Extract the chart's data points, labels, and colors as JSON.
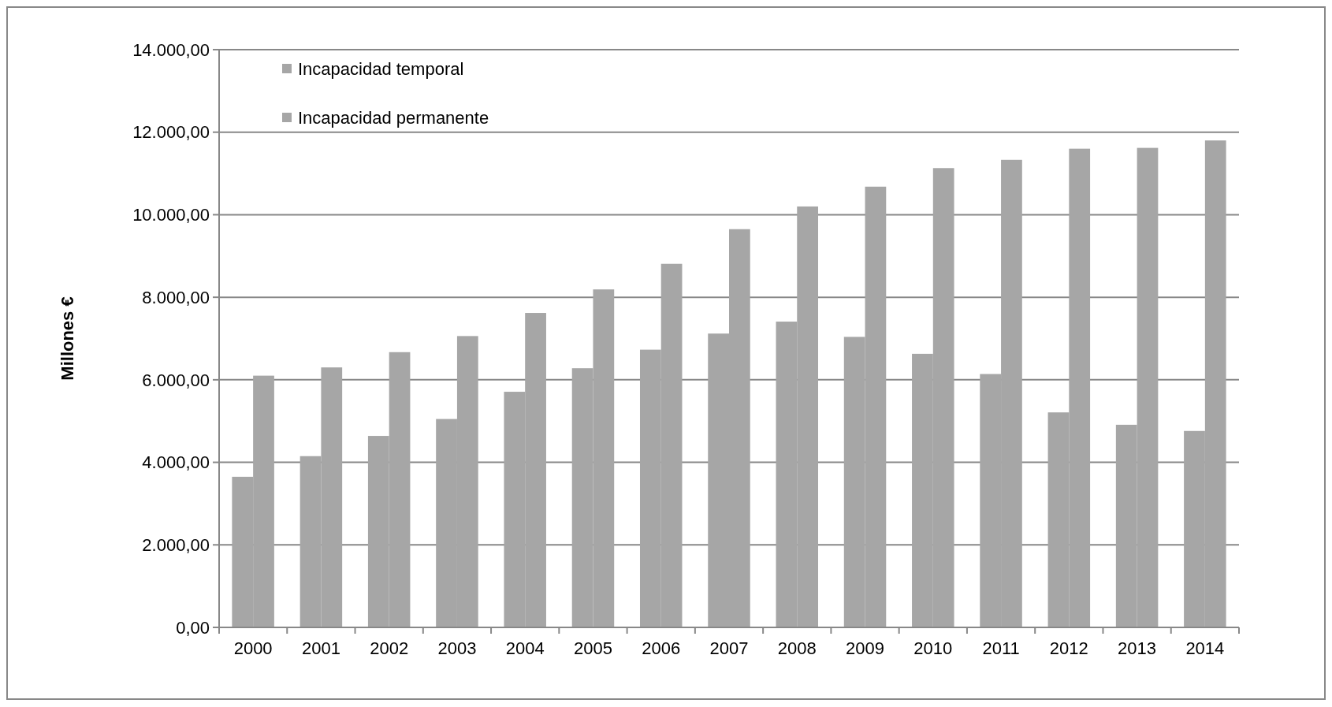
{
  "chart_data": {
    "type": "bar",
    "ylabel": "Millones €",
    "categories": [
      "2000",
      "2001",
      "2002",
      "2003",
      "2004",
      "2005",
      "2006",
      "2007",
      "2008",
      "2009",
      "2010",
      "2011",
      "2012",
      "2013",
      "2014"
    ],
    "series": [
      {
        "name": "Incapacidad temporal",
        "color": "#a6a6a6",
        "values": [
          3650,
          4150,
          4640,
          5050,
          5710,
          6280,
          6730,
          7120,
          7410,
          7040,
          6630,
          6140,
          5210,
          4910,
          4760
        ]
      },
      {
        "name": "Incapacidad permanente",
        "color": "#a6a6a6",
        "values": [
          6100,
          6300,
          6670,
          7060,
          7620,
          8190,
          8810,
          9650,
          10200,
          10680,
          11130,
          11330,
          11600,
          11620,
          11800
        ]
      }
    ],
    "ylim": [
      0,
      14000
    ],
    "yticks": [
      {
        "value": 0,
        "label": "0,00"
      },
      {
        "value": 2000,
        "label": "2.000,00"
      },
      {
        "value": 4000,
        "label": "4.000,00"
      },
      {
        "value": 6000,
        "label": "6.000,00"
      },
      {
        "value": 8000,
        "label": "8.000,00"
      },
      {
        "value": 10000,
        "label": "10.000,00"
      },
      {
        "value": 12000,
        "label": "12.000,00"
      },
      {
        "value": 14000,
        "label": "14.000,00"
      }
    ],
    "grid": "y",
    "legend": "top left"
  }
}
